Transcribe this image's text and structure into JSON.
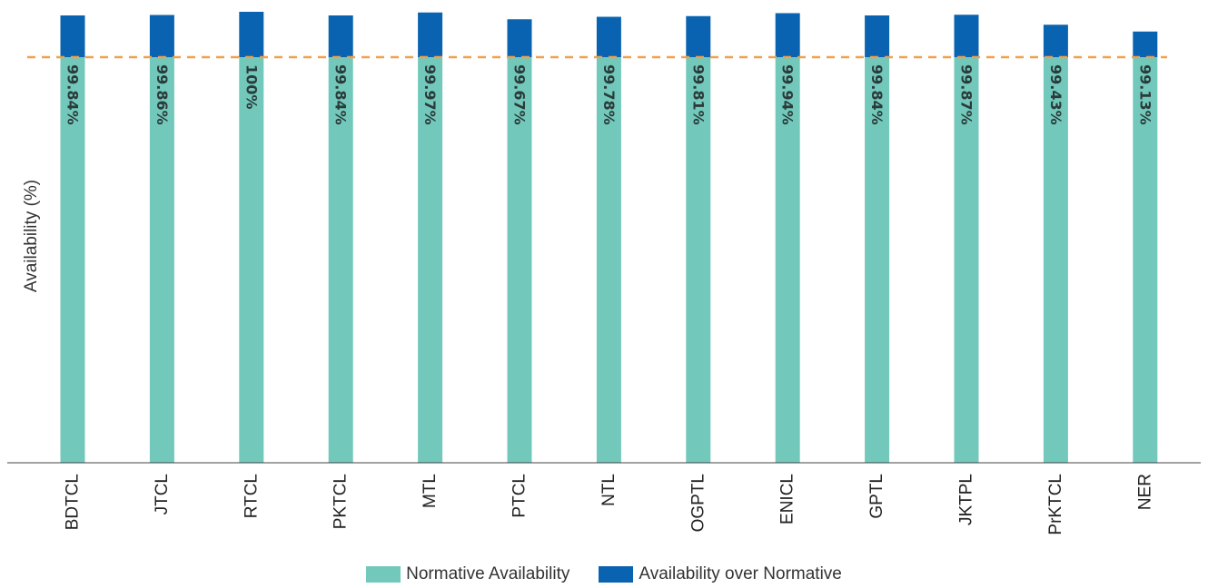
{
  "chart_data": {
    "type": "bar",
    "stacked": true,
    "title": "",
    "xlabel": "",
    "ylabel": "Availability (%)",
    "categories": [
      "BDTCL",
      "JTCL",
      "RTCL",
      "PKTCL",
      "MTL",
      "PTCL",
      "NTL",
      "OGPTL",
      "ENICL",
      "GPTL",
      "JKTPL",
      "PrKTCL",
      "NER"
    ],
    "data_labels": [
      "99.84%",
      "99.86%",
      "100%",
      "99.84%",
      "99.97%",
      "99.67%",
      "99.78%",
      "99.81%",
      "99.94%",
      "99.84%",
      "99.87%",
      "99.43%",
      "99.13%"
    ],
    "availability": [
      99.84,
      99.86,
      100,
      99.84,
      99.97,
      99.67,
      99.78,
      99.81,
      99.94,
      99.84,
      99.87,
      99.43,
      99.13
    ],
    "normative_threshold": 98,
    "series": [
      {
        "name": "Normative Availability",
        "color": "#72c9bb",
        "values": [
          98,
          98,
          98,
          98,
          98,
          98,
          98,
          98,
          98,
          98,
          98,
          98,
          98
        ]
      },
      {
        "name": "Availability over Normative",
        "color": "#0a63b1",
        "values": [
          1.84,
          1.86,
          2.0,
          1.84,
          1.97,
          1.67,
          1.78,
          1.81,
          1.94,
          1.84,
          1.87,
          1.43,
          1.13
        ]
      }
    ],
    "reference_line": {
      "value": 98,
      "color": "#f0a04b",
      "style": "dashed"
    },
    "axis_color": "#444444",
    "grid": false,
    "legend_position": "bottom"
  }
}
